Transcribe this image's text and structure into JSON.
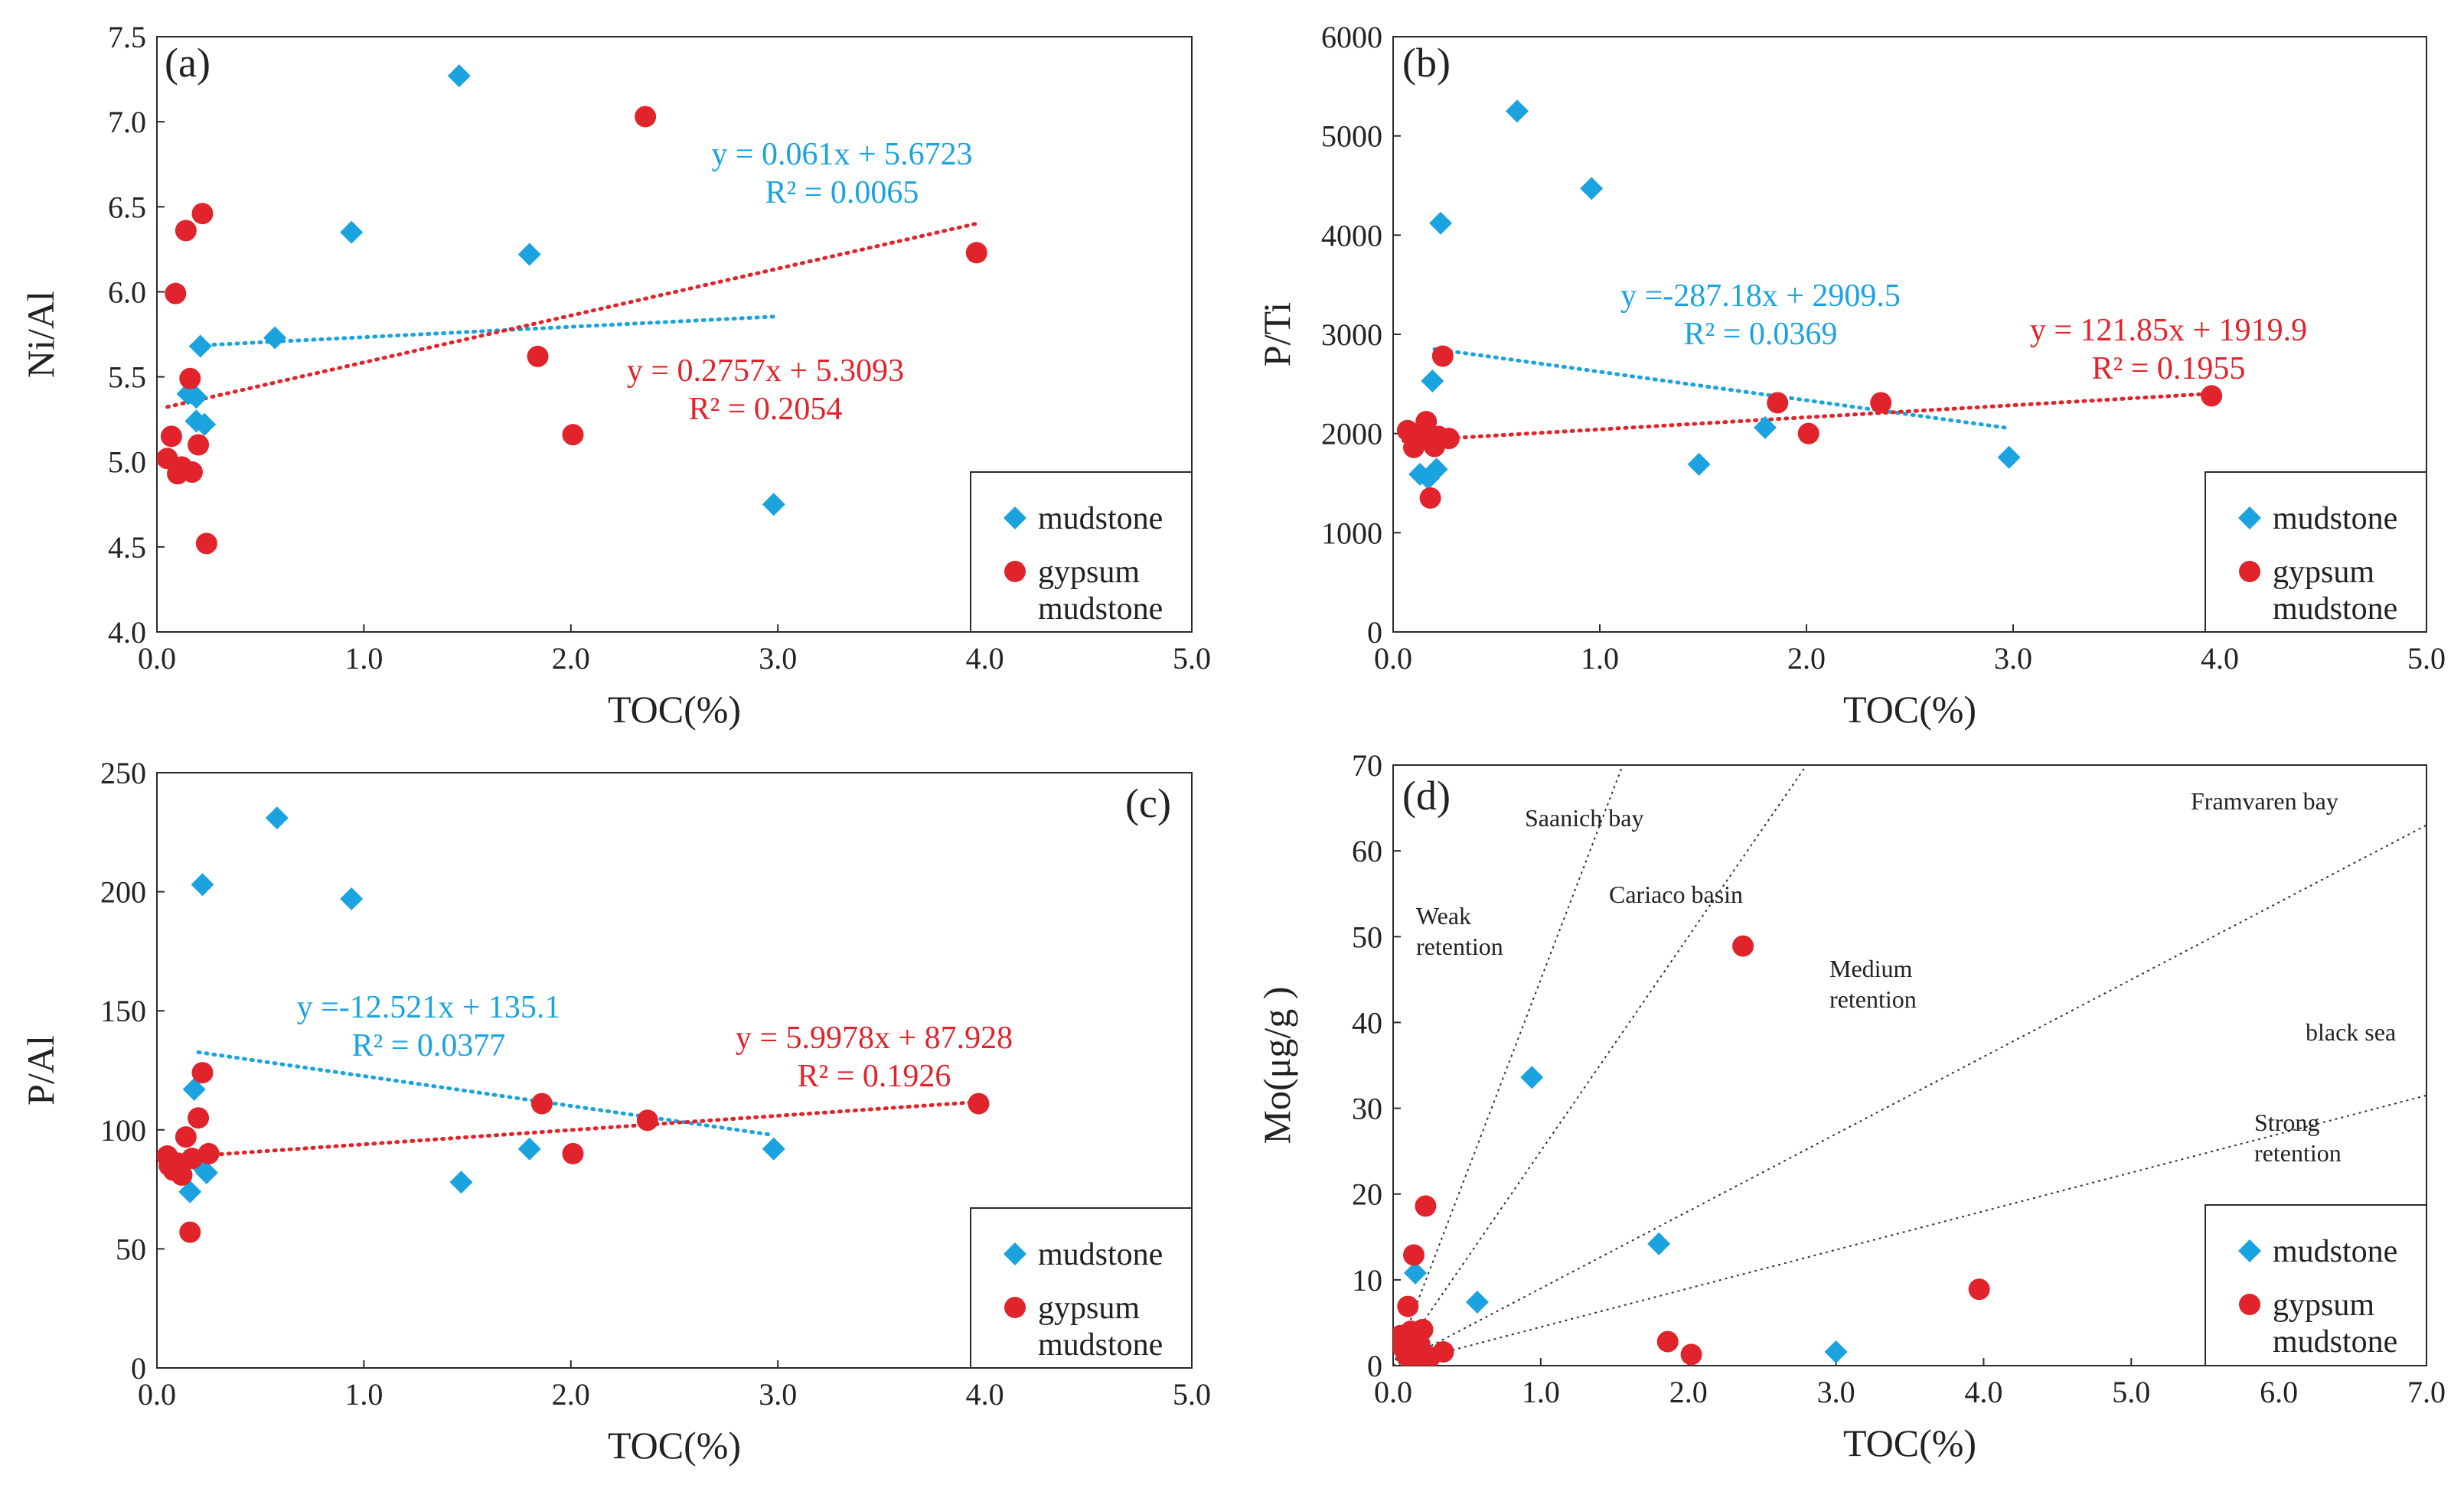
{
  "chart_data": [
    {
      "type": "scatter",
      "panel_label": "(a)",
      "xlabel": "TOC(%)",
      "ylabel": "Ni/Al",
      "xlim": [
        0,
        5
      ],
      "ylim": [
        4,
        7.5
      ],
      "xticks": [
        "0.0",
        "1.0",
        "2.0",
        "3.0",
        "4.0",
        "5.0"
      ],
      "yticks": [
        "4.0",
        "4.5",
        "5.0",
        "5.5",
        "6.0",
        "6.5",
        "7.0",
        "7.5"
      ],
      "series": [
        {
          "name": "mudstone",
          "marker": "diamond",
          "color": "#1ba3e0",
          "points": [
            [
              0.15,
              5.4
            ],
            [
              0.19,
              5.38
            ],
            [
              0.19,
              5.24
            ],
            [
              0.21,
              5.68
            ],
            [
              0.23,
              5.22
            ],
            [
              0.57,
              5.73
            ],
            [
              0.94,
              6.35
            ],
            [
              1.46,
              7.27
            ],
            [
              1.8,
              6.22
            ],
            [
              2.98,
              4.75
            ]
          ],
          "trend": {
            "slope": 0.061,
            "intercept": 5.6723,
            "x_range": [
              0.2,
              3.0
            ],
            "equation": "y = 0.061x + 5.6723",
            "r2": "R² = 0.0065"
          }
        },
        {
          "name": "gypsum mudstone",
          "marker": "circle",
          "color": "#e1242b",
          "points": [
            [
              0.05,
              5.02
            ],
            [
              0.07,
              5.15
            ],
            [
              0.09,
              5.99
            ],
            [
              0.1,
              4.93
            ],
            [
              0.12,
              4.97
            ],
            [
              0.14,
              6.36
            ],
            [
              0.16,
              5.49
            ],
            [
              0.17,
              4.94
            ],
            [
              0.2,
              5.1
            ],
            [
              0.22,
              6.46
            ],
            [
              0.24,
              4.52
            ],
            [
              1.84,
              5.62
            ],
            [
              2.01,
              5.16
            ],
            [
              2.36,
              7.03
            ],
            [
              3.96,
              6.23
            ]
          ],
          "trend": {
            "slope": 0.2757,
            "intercept": 5.3093,
            "x_range": [
              0.05,
              3.96
            ],
            "equation": "y = 0.2757x + 5.3093",
            "r2": "R² = 0.2054"
          }
        }
      ],
      "legend": {
        "position": "bottom-right",
        "entries": [
          "mudstone",
          "gypsum",
          "mudstone"
        ]
      }
    },
    {
      "type": "scatter",
      "panel_label": "(b)",
      "xlabel": "TOC(%)",
      "ylabel": "P/Ti",
      "xlim": [
        0,
        5
      ],
      "ylim": [
        0,
        6000
      ],
      "xticks": [
        "0.0",
        "1.0",
        "2.0",
        "3.0",
        "4.0",
        "5.0"
      ],
      "yticks": [
        "0",
        "1000",
        "2000",
        "3000",
        "4000",
        "5000",
        "6000"
      ],
      "series": [
        {
          "name": "mudstone",
          "marker": "diamond",
          "color": "#1ba3e0",
          "points": [
            [
              0.13,
              1590
            ],
            [
              0.17,
              1550
            ],
            [
              0.19,
              2530
            ],
            [
              0.21,
              1640
            ],
            [
              0.23,
              4120
            ],
            [
              0.6,
              5250
            ],
            [
              0.96,
              4470
            ],
            [
              1.48,
              1690
            ],
            [
              1.8,
              2060
            ],
            [
              2.98,
              1760
            ]
          ],
          "trend": {
            "slope": -287.18,
            "intercept": 2909.5,
            "x_range": [
              0.2,
              2.98
            ],
            "equation": "y =-287.18x + 2909.5",
            "r2": "R² = 0.0369"
          }
        },
        {
          "name": "gypsum mudstone",
          "marker": "circle",
          "color": "#e1242b",
          "points": [
            [
              0.07,
              2030
            ],
            [
              0.1,
              1860
            ],
            [
              0.12,
              1950
            ],
            [
              0.14,
              2000
            ],
            [
              0.16,
              2120
            ],
            [
              0.18,
              1350
            ],
            [
              0.2,
              1870
            ],
            [
              0.22,
              1970
            ],
            [
              0.24,
              2780
            ],
            [
              0.27,
              1950
            ],
            [
              1.86,
              2310
            ],
            [
              2.01,
              2000
            ],
            [
              2.36,
              2310
            ],
            [
              3.96,
              2380
            ]
          ],
          "trend": {
            "slope": 121.85,
            "intercept": 1919.9,
            "x_range": [
              0.05,
              3.96
            ],
            "equation": "y = 121.85x + 1919.9",
            "r2": "R² = 0.1955"
          }
        }
      ],
      "legend": {
        "position": "bottom-right",
        "entries": [
          "mudstone",
          "gypsum",
          "mudstone"
        ]
      }
    },
    {
      "type": "scatter",
      "panel_label": "(c)",
      "xlabel": "TOC(%)",
      "ylabel": "P/Al",
      "xlim": [
        0,
        5
      ],
      "ylim": [
        0,
        250
      ],
      "xticks": [
        "0.0",
        "1.0",
        "2.0",
        "3.0",
        "4.0",
        "5.0"
      ],
      "yticks": [
        "0",
        "50",
        "100",
        "150",
        "200",
        "250"
      ],
      "series": [
        {
          "name": "mudstone",
          "marker": "diamond",
          "color": "#1ba3e0",
          "points": [
            [
              0.16,
              74
            ],
            [
              0.18,
              117
            ],
            [
              0.2,
              86
            ],
            [
              0.22,
              203
            ],
            [
              0.24,
              82
            ],
            [
              0.58,
              231
            ],
            [
              0.94,
              197
            ],
            [
              1.47,
              78
            ],
            [
              1.8,
              92
            ],
            [
              2.98,
              92
            ]
          ],
          "trend": {
            "slope": -12.521,
            "intercept": 135.1,
            "x_range": [
              0.2,
              2.98
            ],
            "equation": "y =-12.521x + 135.1",
            "r2": "R² = 0.0377"
          }
        },
        {
          "name": "gypsum mudstone",
          "marker": "circle",
          "color": "#e1242b",
          "points": [
            [
              0.05,
              89
            ],
            [
              0.06,
              85
            ],
            [
              0.08,
              83
            ],
            [
              0.1,
              86
            ],
            [
              0.12,
              81
            ],
            [
              0.14,
              97
            ],
            [
              0.16,
              57
            ],
            [
              0.17,
              88
            ],
            [
              0.2,
              105
            ],
            [
              0.22,
              124
            ],
            [
              0.25,
              90
            ],
            [
              1.86,
              111
            ],
            [
              2.01,
              90
            ],
            [
              2.37,
              104
            ],
            [
              3.97,
              111
            ]
          ],
          "trend": {
            "slope": 5.9978,
            "intercept": 87.928,
            "x_range": [
              0.05,
              3.97
            ],
            "equation": "y = 5.9978x + 87.928",
            "r2": "R² = 0.1926"
          }
        }
      ],
      "legend": {
        "position": "bottom-right",
        "entries": [
          "mudstone",
          "gypsum",
          "mudstone"
        ]
      }
    },
    {
      "type": "scatter",
      "panel_label": "(d)",
      "xlabel": "TOC(%)",
      "ylabel": "Mo(μg/g )",
      "xlim": [
        0,
        7
      ],
      "ylim": [
        0,
        70
      ],
      "xticks": [
        "0.0",
        "1.0",
        "2.0",
        "3.0",
        "4.0",
        "5.0",
        "6.0",
        "7.0"
      ],
      "yticks": [
        "0",
        "10",
        "20",
        "30",
        "40",
        "50",
        "60",
        "70"
      ],
      "reference_lines": [
        {
          "name": "Saanich bay",
          "slope": 45
        },
        {
          "name": "Cariaco basin",
          "slope": 25
        },
        {
          "name": "Framvaren bay",
          "slope": 9
        },
        {
          "name": "black sea",
          "slope": 4.5
        }
      ],
      "annotations": [
        "Saanich bay",
        "Cariaco basin",
        "Framvaren bay",
        "black sea",
        "Weak",
        "retention",
        "Medium",
        "retention",
        "Strong",
        "retention"
      ],
      "series": [
        {
          "name": "mudstone",
          "marker": "diamond",
          "color": "#1ba3e0",
          "points": [
            [
              0.15,
              10.8
            ],
            [
              0.2,
              1.0
            ],
            [
              0.23,
              1.5
            ],
            [
              0.57,
              7.4
            ],
            [
              0.94,
              33.6
            ],
            [
              1.8,
              14.2
            ],
            [
              3.0,
              1.6
            ]
          ],
          "trend": null
        },
        {
          "name": "gypsum mudstone",
          "marker": "circle",
          "color": "#e1242b",
          "points": [
            [
              0.05,
              3.5
            ],
            [
              0.07,
              2.0
            ],
            [
              0.09,
              1.2
            ],
            [
              0.1,
              6.9
            ],
            [
              0.12,
              4.0
            ],
            [
              0.14,
              12.9
            ],
            [
              0.16,
              0.8
            ],
            [
              0.18,
              2.5
            ],
            [
              0.2,
              4.2
            ],
            [
              0.22,
              18.6
            ],
            [
              0.25,
              1.0
            ],
            [
              0.34,
              1.6
            ],
            [
              1.86,
              2.8
            ],
            [
              2.02,
              1.3
            ],
            [
              2.37,
              48.9
            ],
            [
              3.97,
              8.9
            ]
          ],
          "trend": null
        }
      ],
      "legend": {
        "position": "bottom-right",
        "entries": [
          "mudstone",
          "gypsum",
          "mudstone"
        ]
      }
    }
  ]
}
